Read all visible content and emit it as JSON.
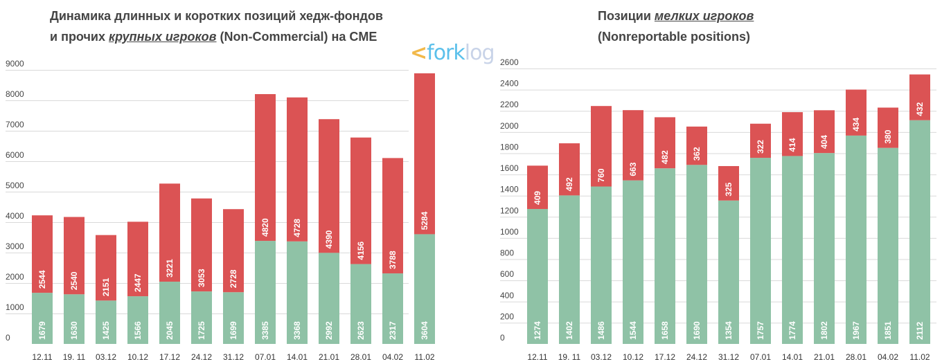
{
  "watermark": {
    "text_a": "fork",
    "text_b": "log",
    "arrow": "<"
  },
  "colors": {
    "long": "#8fc2a6",
    "short": "#db5354",
    "grid": "#d9d9d9"
  },
  "chart_data": [
    {
      "type": "bar",
      "stacked": true,
      "title_line1": "Динамика длинных и коротких позиций хедж-фондов",
      "title_line2_pre": "и прочих ",
      "title_line2_em": "крупных игроков",
      "title_line2_post": " (Non-Commercial) на CME",
      "categories": [
        "12.11",
        "19. 11",
        "03.12",
        "10.12",
        "17.12",
        "24.12",
        "31.12",
        "07.01",
        "14.01",
        "21.01",
        "28.01",
        "04.02",
        "11.02"
      ],
      "series": [
        {
          "values": [
            1679,
            1630,
            1425,
            1566,
            2045,
            1725,
            1699,
            3385,
            3368,
            2992,
            2623,
            2317,
            3604
          ]
        },
        {
          "values": [
            2544,
            2540,
            2151,
            2447,
            3221,
            3053,
            2728,
            4820,
            4728,
            4390,
            4156,
            3788,
            5284
          ]
        }
      ],
      "ylim": [
        0,
        9000
      ],
      "yticks": [
        0,
        1000,
        2000,
        3000,
        4000,
        5000,
        6000,
        7000,
        8000,
        9000
      ],
      "grid": true
    },
    {
      "type": "bar",
      "stacked": true,
      "title_line1_pre": "Позиции ",
      "title_line1_em": "мелких игроков",
      "title_line2": "(Nonreportable positions)",
      "categories": [
        "12.11",
        "19. 11",
        "03.12",
        "10.12",
        "17.12",
        "24.12",
        "31.12",
        "07.01",
        "14.01",
        "21.01",
        "28.01",
        "04.02",
        "11.02"
      ],
      "series": [
        {
          "values": [
            1274,
            1402,
            1486,
            1544,
            1658,
            1690,
            1354,
            1757,
            1774,
            1802,
            1967,
            1851,
            2112
          ]
        },
        {
          "values": [
            409,
            492,
            760,
            663,
            482,
            362,
            325,
            322,
            414,
            404,
            434,
            380,
            432
          ]
        }
      ],
      "ylim": [
        0,
        2600
      ],
      "yticks": [
        0,
        200,
        400,
        600,
        800,
        1000,
        1200,
        1400,
        1600,
        1800,
        2000,
        2200,
        2400,
        2600
      ],
      "grid": true
    }
  ]
}
